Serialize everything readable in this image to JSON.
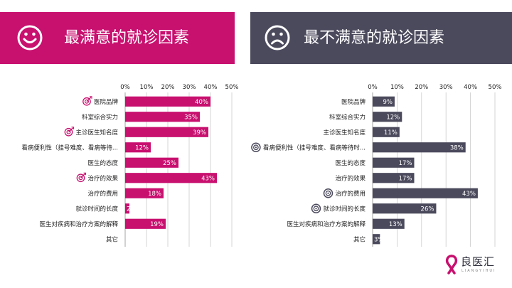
{
  "colors": {
    "left_accent": "#c8106f",
    "right_accent": "#4b4a5d",
    "axis_text": "#222222",
    "grid": "#cccccc"
  },
  "left_panel": {
    "title": "最满意的就诊因素",
    "icon": "smiley-face-icon"
  },
  "right_panel": {
    "title": "最不满意的就诊因素",
    "icon": "sad-face-icon"
  },
  "brand": {
    "name": "良医汇",
    "sub": "LIANGYIHUI",
    "icon": "ribbon-logo-icon"
  },
  "chart_data": [
    {
      "type": "bar",
      "orientation": "horizontal",
      "title": "最满意的就诊因素",
      "categories": [
        "医院品牌",
        "科室综合实力",
        "主诊医生知名度",
        "看病便利性（挂号难度、看病等待...",
        "医生的态度",
        "治疗的效果",
        "治疗的费用",
        "就诊时间的长度",
        "医生对疾病和治疗方案的解释",
        "其它"
      ],
      "values": [
        40,
        35,
        39,
        12,
        25,
        43,
        18,
        2,
        19,
        0
      ],
      "value_labels": [
        "40%",
        "35%",
        "39%",
        "12%",
        "25%",
        "43%",
        "18%",
        "2",
        "19%",
        ""
      ],
      "highlighted": [
        "医院品牌",
        "主诊医生知名度",
        "治疗的效果"
      ],
      "marker_icon": "target-icon",
      "xlim": [
        0,
        50
      ],
      "xticks": [
        "0%",
        "10%",
        "20%",
        "30%",
        "40%",
        "50%"
      ],
      "grid": true,
      "color": "#c8106f"
    },
    {
      "type": "bar",
      "orientation": "horizontal",
      "title": "最不满意的就诊因素",
      "categories": [
        "医院品牌",
        "科室综合实力",
        "主诊医生知名度",
        "看病便利性（挂号难度、看病等待时...",
        "医生的态度",
        "治疗的效果",
        "治疗的费用",
        "就诊时间的长度",
        "医生对疾病和治疗方案的解释",
        "其它"
      ],
      "values": [
        9,
        12,
        11,
        38,
        17,
        17,
        43,
        26,
        13,
        3
      ],
      "value_labels": [
        "9%",
        "12%",
        "11%",
        "38%",
        "17%",
        "17%",
        "43%",
        "26%",
        "13%",
        "3%"
      ],
      "highlighted": [
        "看病便利性（挂号难度、看病等待时...",
        "治疗的费用",
        "就诊时间的长度"
      ],
      "marker_icon": "bullseye-icon",
      "xlim": [
        0,
        50
      ],
      "xticks": [
        "0%",
        "10%",
        "20%",
        "30%",
        "40%",
        "50%"
      ],
      "grid": true,
      "color": "#4b4a5d"
    }
  ]
}
